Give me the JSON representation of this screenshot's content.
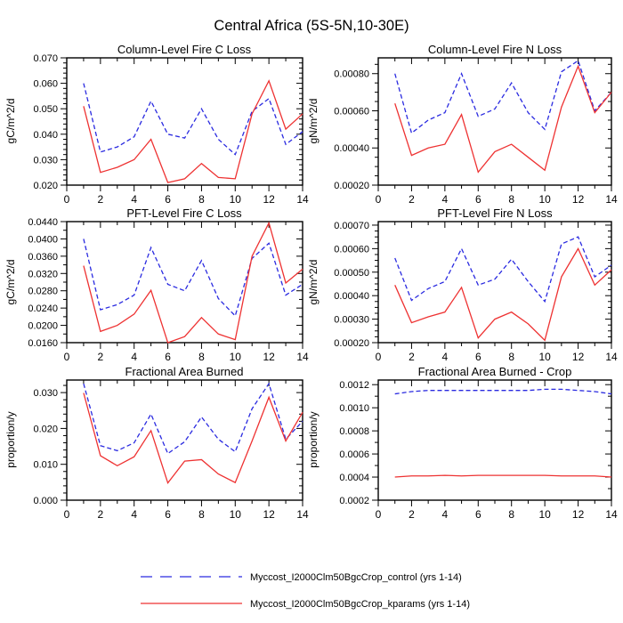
{
  "page_title": "Central Africa (5S-5N,10-30E)",
  "colors": {
    "control": "#2a2ae0",
    "kparams": "#ee3232",
    "axis": "#000000"
  },
  "legend": {
    "entries": [
      {
        "label": "Myccost_I2000Clm50BgcCrop_control (yrs 1-14)",
        "color": "#2a2ae0",
        "style": "dashed"
      },
      {
        "label": "Myccost_I2000Clm50BgcCrop_kparams (yrs 1-14)",
        "color": "#ee3232",
        "style": "solid"
      }
    ]
  },
  "chart_data": [
    {
      "type": "line",
      "title": "Column-Level Fire C Loss",
      "ylabel": "gC/m^2/d",
      "xlim": [
        0,
        14
      ],
      "ylim": [
        0.02,
        0.07
      ],
      "xticks": [
        0,
        2,
        4,
        6,
        8,
        10,
        12,
        14
      ],
      "x_minor": [
        1,
        3,
        5,
        7,
        9,
        11,
        13
      ],
      "x": [
        1,
        2,
        3,
        4,
        5,
        6,
        7,
        8,
        9,
        10,
        11,
        12,
        13,
        14
      ],
      "ytick_values": [
        0.02,
        0.03,
        0.04,
        0.05,
        0.06,
        0.07
      ],
      "ytick_labels": [
        "0.020",
        "0.030",
        "0.040",
        "0.050",
        "0.060",
        "0.070"
      ],
      "y_minor_step": 0.002,
      "series": [
        {
          "name": "control",
          "color": "#2a2ae0",
          "dash": "5,3",
          "values": [
            0.06,
            0.033,
            0.035,
            0.039,
            0.053,
            0.04,
            0.0385,
            0.05,
            0.038,
            0.032,
            0.049,
            0.054,
            0.036,
            0.041
          ]
        },
        {
          "name": "kparams",
          "color": "#ee3232",
          "dash": "",
          "values": [
            0.051,
            0.025,
            0.027,
            0.03,
            0.038,
            0.021,
            0.0225,
            0.0285,
            0.023,
            0.0225,
            0.048,
            0.061,
            0.042,
            0.048
          ]
        }
      ]
    },
    {
      "type": "line",
      "title": "Column-Level Fire N Loss",
      "ylabel": "gN/m^2/d",
      "xlim": [
        0,
        14
      ],
      "ylim": [
        0.0002,
        0.000885
      ],
      "xticks": [
        0,
        2,
        4,
        6,
        8,
        10,
        12,
        14
      ],
      "x_minor": [
        1,
        3,
        5,
        7,
        9,
        11,
        13
      ],
      "x": [
        1,
        2,
        3,
        4,
        5,
        6,
        7,
        8,
        9,
        10,
        11,
        12,
        13,
        14
      ],
      "ytick_values": [
        0.0002,
        0.0004,
        0.0006,
        0.0008
      ],
      "ytick_labels": [
        "0.00020",
        "0.00040",
        "0.00060",
        "0.00080"
      ],
      "y_minor_step": 5e-05,
      "series": [
        {
          "name": "control",
          "color": "#2a2ae0",
          "dash": "5,3",
          "values": [
            0.0008,
            0.00048,
            0.00055,
            0.00059,
            0.0008,
            0.00057,
            0.00061,
            0.00075,
            0.00059,
            0.0005,
            0.00081,
            0.00087,
            0.0006,
            0.0007
          ]
        },
        {
          "name": "kparams",
          "color": "#ee3232",
          "dash": "",
          "values": [
            0.00064,
            0.00036,
            0.0004,
            0.00042,
            0.00058,
            0.00027,
            0.00038,
            0.00042,
            0.00035,
            0.00028,
            0.00062,
            0.00084,
            0.00059,
            0.0007
          ]
        }
      ]
    },
    {
      "type": "line",
      "title": "PFT-Level Fire C Loss",
      "ylabel": "gC/m^2/d",
      "xlim": [
        0,
        14
      ],
      "ylim": [
        0.016,
        0.044
      ],
      "xticks": [
        0,
        2,
        4,
        6,
        8,
        10,
        12,
        14
      ],
      "x_minor": [
        1,
        3,
        5,
        7,
        9,
        11,
        13
      ],
      "x": [
        1,
        2,
        3,
        4,
        5,
        6,
        7,
        8,
        9,
        10,
        11,
        12,
        13,
        14
      ],
      "ytick_values": [
        0.016,
        0.02,
        0.024,
        0.028,
        0.032,
        0.036,
        0.04,
        0.044
      ],
      "ytick_labels": [
        "0.0160",
        "0.0200",
        "0.0240",
        "0.0280",
        "0.0320",
        "0.0360",
        "0.0400",
        "0.0440"
      ],
      "y_minor_step": 0.002,
      "series": [
        {
          "name": "control",
          "color": "#2a2ae0",
          "dash": "5,3",
          "values": [
            0.04,
            0.0236,
            0.0248,
            0.027,
            0.038,
            0.0295,
            0.028,
            0.035,
            0.0262,
            0.0222,
            0.0355,
            0.039,
            0.027,
            0.0295
          ]
        },
        {
          "name": "kparams",
          "color": "#ee3232",
          "dash": "",
          "values": [
            0.0338,
            0.0186,
            0.02,
            0.0226,
            0.0281,
            0.016,
            0.0174,
            0.0218,
            0.018,
            0.0167,
            0.036,
            0.0437,
            0.0298,
            0.033
          ]
        }
      ]
    },
    {
      "type": "line",
      "title": "PFT-Level Fire N Loss",
      "ylabel": "gN/m^2/d",
      "xlim": [
        0,
        14
      ],
      "ylim": [
        0.0002,
        0.000715
      ],
      "xticks": [
        0,
        2,
        4,
        6,
        8,
        10,
        12,
        14
      ],
      "x_minor": [
        1,
        3,
        5,
        7,
        9,
        11,
        13
      ],
      "x": [
        1,
        2,
        3,
        4,
        5,
        6,
        7,
        8,
        9,
        10,
        11,
        12,
        13,
        14
      ],
      "ytick_values": [
        0.0002,
        0.0003,
        0.0004,
        0.0005,
        0.0006,
        0.0007
      ],
      "ytick_labels": [
        "0.00020",
        "0.00030",
        "0.00040",
        "0.00050",
        "0.00060",
        "0.00070"
      ],
      "y_minor_step": 2.5e-05,
      "series": [
        {
          "name": "control",
          "color": "#2a2ae0",
          "dash": "5,3",
          "values": [
            0.00056,
            0.00038,
            0.00043,
            0.00046,
            0.0006,
            0.000445,
            0.00047,
            0.000555,
            0.00046,
            0.000375,
            0.00062,
            0.00065,
            0.00048,
            0.00053
          ]
        },
        {
          "name": "kparams",
          "color": "#ee3232",
          "dash": "",
          "values": [
            0.000445,
            0.000285,
            0.00031,
            0.00033,
            0.000435,
            0.00022,
            0.0003,
            0.00033,
            0.00028,
            0.00021,
            0.00048,
            0.0006,
            0.000445,
            0.00051
          ]
        }
      ]
    },
    {
      "type": "line",
      "title": "Fractional Area Burned",
      "ylabel": "proportion/y",
      "xlim": [
        0,
        14
      ],
      "ylim": [
        0.0,
        0.0335
      ],
      "xticks": [
        0,
        2,
        4,
        6,
        8,
        10,
        12,
        14
      ],
      "x_minor": [
        1,
        3,
        5,
        7,
        9,
        11,
        13
      ],
      "x": [
        1,
        2,
        3,
        4,
        5,
        6,
        7,
        8,
        9,
        10,
        11,
        12,
        13,
        14
      ],
      "ytick_values": [
        0.0,
        0.01,
        0.02,
        0.03
      ],
      "ytick_labels": [
        "0.000",
        "0.010",
        "0.020",
        "0.030"
      ],
      "y_minor_step": 0.002,
      "series": [
        {
          "name": "control",
          "color": "#2a2ae0",
          "dash": "5,3",
          "values": [
            0.0325,
            0.0152,
            0.0138,
            0.016,
            0.024,
            0.013,
            0.0163,
            0.0232,
            0.017,
            0.0135,
            0.0255,
            0.0325,
            0.017,
            0.022
          ]
        },
        {
          "name": "kparams",
          "color": "#ee3232",
          "dash": "",
          "values": [
            0.0299,
            0.0124,
            0.0096,
            0.0121,
            0.0194,
            0.0048,
            0.0109,
            0.0113,
            0.0073,
            0.0049,
            0.0165,
            0.0287,
            0.0165,
            0.0245
          ]
        }
      ]
    },
    {
      "type": "line",
      "title": "Fractional Area Burned - Crop",
      "ylabel": "proportion/y",
      "xlim": [
        0,
        14
      ],
      "ylim": [
        0.0002,
        0.00124
      ],
      "xticks": [
        0,
        2,
        4,
        6,
        8,
        10,
        12,
        14
      ],
      "x_minor": [
        1,
        3,
        5,
        7,
        9,
        11,
        13
      ],
      "x": [
        1,
        2,
        3,
        4,
        5,
        6,
        7,
        8,
        9,
        10,
        11,
        12,
        13,
        14
      ],
      "ytick_values": [
        0.0002,
        0.0004,
        0.0006,
        0.0008,
        0.001,
        0.0012
      ],
      "ytick_labels": [
        "0.0002",
        "0.0004",
        "0.0006",
        "0.0008",
        "0.0010",
        "0.0012"
      ],
      "y_minor_step": 0.0001,
      "series": [
        {
          "name": "control",
          "color": "#2a2ae0",
          "dash": "5,3",
          "values": [
            0.00112,
            0.00114,
            0.00115,
            0.00115,
            0.00115,
            0.00115,
            0.00115,
            0.00115,
            0.00115,
            0.00116,
            0.00116,
            0.00115,
            0.00114,
            0.00112
          ]
        },
        {
          "name": "kparams",
          "color": "#ee3232",
          "dash": "",
          "values": [
            0.0004,
            0.00041,
            0.00041,
            0.000415,
            0.00041,
            0.000415,
            0.000415,
            0.000415,
            0.000415,
            0.000415,
            0.00041,
            0.00041,
            0.00041,
            0.0004
          ]
        }
      ]
    }
  ]
}
